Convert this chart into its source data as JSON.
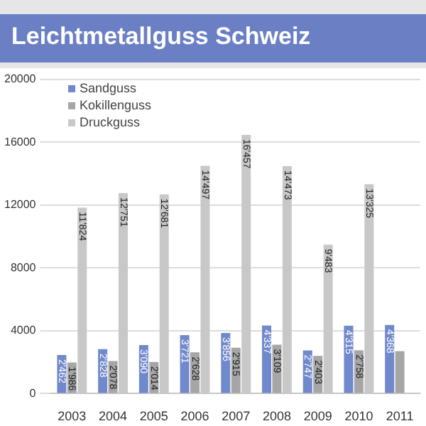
{
  "chart_data": {
    "type": "bar",
    "title": "Leichtmetallguss Schweiz",
    "categories": [
      "2003",
      "2004",
      "2005",
      "2006",
      "2007",
      "2008",
      "2009",
      "2010",
      "2011"
    ],
    "series": [
      {
        "name": "Sandguss",
        "color": "#7088cc",
        "values": [
          2462,
          2828,
          3090,
          3721,
          3856,
          4337,
          2747,
          4315,
          4368
        ],
        "value_labels": [
          "2'462",
          "2'828",
          "3'090",
          "3'721",
          "3'856",
          "4'337",
          "2'747",
          "4'315",
          "4'368"
        ]
      },
      {
        "name": "Kokillenguss",
        "color": "#a6a6a6",
        "values": [
          1986,
          2078,
          2014,
          2628,
          2915,
          3109,
          2403,
          2758,
          2700
        ],
        "value_labels": [
          "1'986",
          "2'078",
          "2'014",
          "2'628",
          "2'915",
          "3'109",
          "2'403",
          "2'758",
          null
        ]
      },
      {
        "name": "Druckguss",
        "color": "#c8c8c8",
        "values": [
          11824,
          12751,
          12681,
          14497,
          16457,
          14473,
          9483,
          13325,
          null
        ],
        "value_labels": [
          "11'824",
          "12'751",
          "12'681",
          "14'497",
          "16'457",
          "14'473",
          "9'483",
          "13'325",
          null
        ]
      }
    ],
    "ylim": [
      0,
      20000
    ],
    "yticks": [
      0,
      4000,
      8000,
      12000,
      16000,
      20000
    ],
    "grid": "y",
    "legend": "top left"
  }
}
